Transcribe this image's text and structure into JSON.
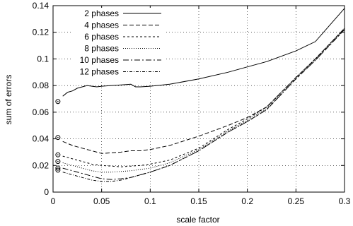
{
  "chart_data": {
    "type": "line",
    "xlabel": "scale factor",
    "ylabel": "sum of errors",
    "xlim": [
      0,
      0.3
    ],
    "ylim": [
      0,
      0.14
    ],
    "xticks": [
      0,
      0.05,
      0.1,
      0.15,
      0.2,
      0.25,
      0.3
    ],
    "xtick_labels": [
      "0",
      "0.05",
      "0.1",
      "0.15",
      "0.2",
      "0.25",
      "0.3"
    ],
    "yticks": [
      0,
      0.02,
      0.04,
      0.06,
      0.08,
      0.1,
      0.12,
      0.14
    ],
    "ytick_labels": [
      "0",
      "0.02",
      "0.04",
      "0.06",
      "0.08",
      "0.1",
      "0.12",
      "0.14"
    ],
    "grid": true,
    "legend_position": "top-left",
    "series": [
      {
        "name": "2 phases",
        "dash": "",
        "x": [
          0.01,
          0.015,
          0.02,
          0.025,
          0.03,
          0.035,
          0.04,
          0.045,
          0.05,
          0.06,
          0.07,
          0.08,
          0.085,
          0.09,
          0.1,
          0.12,
          0.15,
          0.18,
          0.2,
          0.22,
          0.25,
          0.27,
          0.3
        ],
        "y": [
          0.072,
          0.075,
          0.076,
          0.078,
          0.079,
          0.08,
          0.0795,
          0.079,
          0.0795,
          0.08,
          0.0805,
          0.081,
          0.079,
          0.079,
          0.0795,
          0.081,
          0.085,
          0.09,
          0.094,
          0.098,
          0.106,
          0.113,
          0.138
        ]
      },
      {
        "name": "4 phases",
        "dash": "6,3",
        "x": [
          0.01,
          0.02,
          0.03,
          0.04,
          0.05,
          0.06,
          0.07,
          0.08,
          0.09,
          0.1,
          0.12,
          0.15,
          0.18,
          0.2,
          0.22,
          0.25,
          0.27,
          0.3
        ],
        "y": [
          0.038,
          0.035,
          0.033,
          0.031,
          0.029,
          0.0295,
          0.03,
          0.031,
          0.031,
          0.032,
          0.035,
          0.042,
          0.05,
          0.056,
          0.064,
          0.086,
          0.1,
          0.123
        ]
      },
      {
        "name": "6 phases",
        "dash": "3,3",
        "x": [
          0.01,
          0.02,
          0.03,
          0.04,
          0.05,
          0.06,
          0.07,
          0.08,
          0.09,
          0.1,
          0.12,
          0.15,
          0.18,
          0.2,
          0.22,
          0.25,
          0.27,
          0.3
        ],
        "y": [
          0.027,
          0.025,
          0.023,
          0.021,
          0.02,
          0.0195,
          0.019,
          0.0195,
          0.02,
          0.021,
          0.024,
          0.033,
          0.047,
          0.055,
          0.064,
          0.086,
          0.1,
          0.123
        ]
      },
      {
        "name": "8 phases",
        "dash": "1,2",
        "x": [
          0.01,
          0.02,
          0.03,
          0.04,
          0.05,
          0.06,
          0.07,
          0.08,
          0.09,
          0.1,
          0.12,
          0.15,
          0.18,
          0.2,
          0.22,
          0.25,
          0.27,
          0.3
        ],
        "y": [
          0.022,
          0.02,
          0.018,
          0.016,
          0.015,
          0.015,
          0.0155,
          0.016,
          0.017,
          0.018,
          0.022,
          0.032,
          0.046,
          0.054,
          0.063,
          0.086,
          0.1,
          0.123
        ]
      },
      {
        "name": "10 phases",
        "dash": "8,3,2,3",
        "x": [
          0.01,
          0.02,
          0.03,
          0.04,
          0.05,
          0.06,
          0.07,
          0.08,
          0.09,
          0.1,
          0.12,
          0.15,
          0.18,
          0.2,
          0.22,
          0.25,
          0.27,
          0.3
        ],
        "y": [
          0.018,
          0.016,
          0.014,
          0.012,
          0.01,
          0.0095,
          0.01,
          0.011,
          0.013,
          0.015,
          0.02,
          0.031,
          0.045,
          0.053,
          0.062,
          0.085,
          0.099,
          0.122
        ]
      },
      {
        "name": "12 phases",
        "dash": "4,2,1,2",
        "x": [
          0.01,
          0.02,
          0.03,
          0.04,
          0.05,
          0.06,
          0.07,
          0.08,
          0.09,
          0.1,
          0.12,
          0.15,
          0.18,
          0.2,
          0.22,
          0.25,
          0.27,
          0.3
        ],
        "y": [
          0.015,
          0.013,
          0.011,
          0.009,
          0.008,
          0.008,
          0.009,
          0.011,
          0.013,
          0.015,
          0.02,
          0.031,
          0.045,
          0.053,
          0.062,
          0.085,
          0.099,
          0.122
        ]
      }
    ],
    "markers": {
      "shape": "circle-dot",
      "points": [
        {
          "x": 0.005,
          "y": 0.068
        },
        {
          "x": 0.005,
          "y": 0.041
        },
        {
          "x": 0.005,
          "y": 0.028
        },
        {
          "x": 0.005,
          "y": 0.023
        },
        {
          "x": 0.005,
          "y": 0.018
        },
        {
          "x": 0.005,
          "y": 0.0165
        }
      ]
    }
  }
}
